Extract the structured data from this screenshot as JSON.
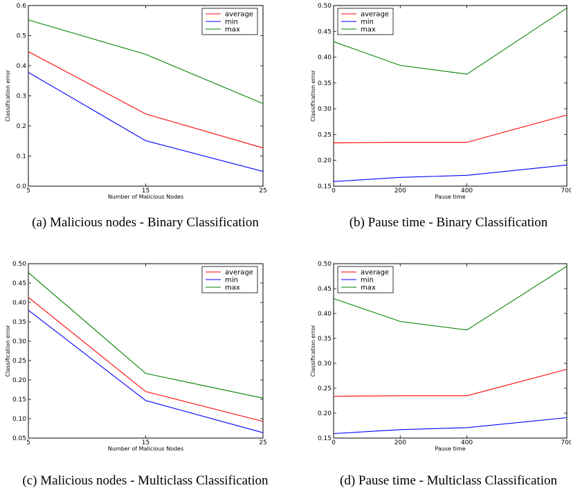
{
  "figure": {
    "colors": {
      "average": "#ff0000",
      "min": "#0000ff",
      "max": "#008000"
    },
    "panels": [
      {
        "caption": "(a)  Malicious nodes - Binary Classification",
        "chart_data": {
          "type": "line",
          "xlabel": "Number of Malicious Nodes",
          "ylabel": "Classification error",
          "x": [
            5,
            15,
            25
          ],
          "xlim": [
            5,
            25
          ],
          "ylim": [
            0.0,
            0.6
          ],
          "xticks": [
            "5",
            "15",
            "25"
          ],
          "yticks": [
            "0.0",
            "0.1",
            "0.2",
            "0.3",
            "0.4",
            "0.5",
            "0.6"
          ],
          "ytick_values": [
            0.0,
            0.1,
            0.2,
            0.3,
            0.4,
            0.5,
            0.6
          ],
          "legend": "top-right",
          "series": [
            {
              "name": "average",
              "values": [
                0.447,
                0.24,
                0.127
              ]
            },
            {
              "name": "min",
              "values": [
                0.378,
                0.151,
                0.049
              ]
            },
            {
              "name": "max",
              "values": [
                0.552,
                0.438,
                0.274
              ]
            }
          ]
        }
      },
      {
        "caption": "(b)  Pause time - Binary Classification",
        "chart_data": {
          "type": "line",
          "xlabel": "Pause time",
          "ylabel": "Classification error",
          "x": [
            0,
            200,
            400,
            700
          ],
          "xlim": [
            0,
            700
          ],
          "ylim": [
            0.15,
            0.5
          ],
          "xticks": [
            "0",
            "200",
            "400",
            "700"
          ],
          "yticks": [
            "0.15",
            "0.20",
            "0.25",
            "0.30",
            "0.35",
            "0.40",
            "0.45",
            "0.50"
          ],
          "ytick_values": [
            0.15,
            0.2,
            0.25,
            0.3,
            0.35,
            0.4,
            0.45,
            0.5
          ],
          "legend": "top-left",
          "series": [
            {
              "name": "average",
              "values": [
                0.234,
                0.235,
                0.235,
                0.288
              ]
            },
            {
              "name": "min",
              "values": [
                0.159,
                0.167,
                0.171,
                0.191
              ]
            },
            {
              "name": "max",
              "values": [
                0.43,
                0.384,
                0.367,
                0.495
              ]
            }
          ]
        }
      },
      {
        "caption": "(c)  Malicious nodes - Multiclass Classification",
        "chart_data": {
          "type": "line",
          "xlabel": "Number of Malicious Nodes",
          "ylabel": "Classification error",
          "x": [
            5,
            15,
            25
          ],
          "xlim": [
            5,
            25
          ],
          "ylim": [
            0.05,
            0.5
          ],
          "xticks": [
            "5",
            "15",
            "25"
          ],
          "yticks": [
            "0.05",
            "0.10",
            "0.15",
            "0.20",
            "0.25",
            "0.30",
            "0.35",
            "0.40",
            "0.45",
            "0.50"
          ],
          "ytick_values": [
            0.05,
            0.1,
            0.15,
            0.2,
            0.25,
            0.3,
            0.35,
            0.4,
            0.45,
            0.5
          ],
          "legend": "top-right",
          "series": [
            {
              "name": "average",
              "values": [
                0.413,
                0.17,
                0.093
              ]
            },
            {
              "name": "min",
              "values": [
                0.38,
                0.147,
                0.064
              ]
            },
            {
              "name": "max",
              "values": [
                0.477,
                0.217,
                0.153
              ]
            }
          ]
        }
      },
      {
        "caption": "(d)  Pause time - Multiclass Classification",
        "chart_data": {
          "type": "line",
          "xlabel": "Pause time",
          "ylabel": "Classification error",
          "x": [
            0,
            200,
            400,
            700
          ],
          "xlim": [
            0,
            700
          ],
          "ylim": [
            0.15,
            0.5
          ],
          "xticks": [
            "0",
            "200",
            "400",
            "700"
          ],
          "yticks": [
            "0.15",
            "0.20",
            "0.25",
            "0.30",
            "0.35",
            "0.40",
            "0.45",
            "0.50"
          ],
          "ytick_values": [
            0.15,
            0.2,
            0.25,
            0.3,
            0.35,
            0.4,
            0.45,
            0.5
          ],
          "legend": "top-left",
          "series": [
            {
              "name": "average",
              "values": [
                0.234,
                0.235,
                0.235,
                0.288
              ]
            },
            {
              "name": "min",
              "values": [
                0.159,
                0.167,
                0.171,
                0.191
              ]
            },
            {
              "name": "max",
              "values": [
                0.43,
                0.384,
                0.367,
                0.495
              ]
            }
          ]
        }
      }
    ]
  }
}
